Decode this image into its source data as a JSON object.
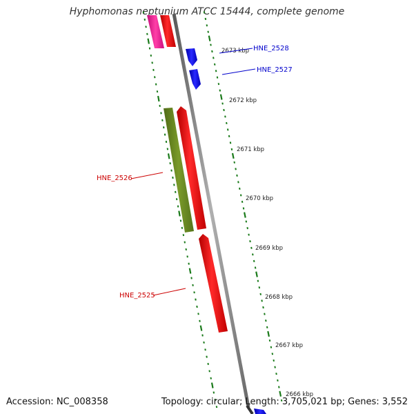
{
  "title": "Hyphomonas neptunium ATCC 15444, complete genome",
  "footer": {
    "accession": "Accession: NC_008358",
    "summary": "Topology: circular; Length: 3,705,021 bp; Genes: 3,552"
  },
  "ticks": [
    "2673 kbp",
    "2672 kbp",
    "2671 kbp",
    "2670 kbp",
    "2669 kbp",
    "2668 kbp",
    "2667 kbp",
    "2666 kbp"
  ],
  "gene_labels": [
    {
      "name": "HNE_2528",
      "color": "#0000cc"
    },
    {
      "name": "HNE_2527",
      "color": "#0000cc"
    },
    {
      "name": "HNE_2526",
      "color": "#cc0000"
    },
    {
      "name": "HNE_2525",
      "color": "#cc0000"
    }
  ],
  "colors": {
    "backbone": "#8a8a8a",
    "dotted_track": "#1a7a1a",
    "red_gene": "#ff0000",
    "blue_gene": "#0000ff",
    "olive_gene": "#6b8e23",
    "magenta_gene": "#ff1493"
  }
}
